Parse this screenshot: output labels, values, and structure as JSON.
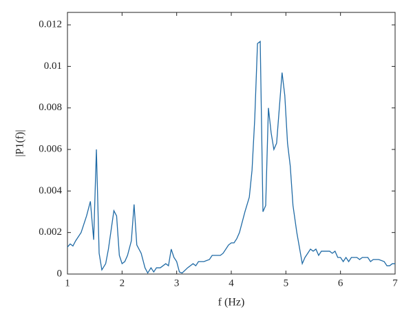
{
  "chart_data": {
    "type": "line",
    "x_label": "f (Hz)",
    "y_label": "|P1(f)|",
    "xlim": [
      1,
      7
    ],
    "xticks": [
      1,
      2,
      3,
      4,
      5,
      6,
      7
    ],
    "ylim": [
      0,
      0.0126
    ],
    "yticks": [
      0,
      0.002,
      0.004,
      0.006,
      0.008,
      0.01,
      0.012
    ],
    "series": [
      {
        "color": "#1f6aa5",
        "x": [
          1.0,
          1.05,
          1.1,
          1.15,
          1.25,
          1.35,
          1.42,
          1.48,
          1.53,
          1.58,
          1.63,
          1.7,
          1.75,
          1.85,
          1.9,
          1.95,
          2.0,
          2.05,
          2.1,
          2.17,
          2.22,
          2.27,
          2.35,
          2.42,
          2.47,
          2.53,
          2.58,
          2.63,
          2.7,
          2.75,
          2.8,
          2.85,
          2.9,
          2.95,
          3.0,
          3.05,
          3.1,
          3.2,
          3.3,
          3.35,
          3.4,
          3.5,
          3.6,
          3.65,
          3.7,
          3.8,
          3.85,
          3.95,
          4.0,
          4.05,
          4.1,
          4.15,
          4.25,
          4.33,
          4.38,
          4.43,
          4.48,
          4.53,
          4.58,
          4.63,
          4.68,
          4.73,
          4.78,
          4.83,
          4.88,
          4.93,
          4.98,
          5.03,
          5.08,
          5.13,
          5.2,
          5.3,
          5.35,
          5.4,
          5.45,
          5.5,
          5.55,
          5.6,
          5.65,
          5.7,
          5.8,
          5.85,
          5.9,
          5.95,
          6.0,
          6.05,
          6.1,
          6.15,
          6.2,
          6.3,
          6.35,
          6.4,
          6.5,
          6.55,
          6.6,
          6.7,
          6.8,
          6.85,
          6.9,
          6.95,
          7.0
        ],
        "values": [
          0.0013,
          0.00145,
          0.00135,
          0.0016,
          0.002,
          0.0028,
          0.0035,
          0.00165,
          0.006,
          0.001,
          0.0002,
          0.0005,
          0.0012,
          0.00305,
          0.0028,
          0.0009,
          0.0005,
          0.0006,
          0.0009,
          0.0016,
          0.00335,
          0.0014,
          0.001,
          0.0003,
          5e-05,
          0.0003,
          0.0001,
          0.0003,
          0.0003,
          0.0004,
          0.0005,
          0.0004,
          0.0012,
          0.0008,
          0.0006,
          0.0001,
          5e-05,
          0.0003,
          0.0005,
          0.0004,
          0.0006,
          0.0006,
          0.0007,
          0.0009,
          0.0009,
          0.0009,
          0.001,
          0.0014,
          0.0015,
          0.0015,
          0.0017,
          0.002,
          0.003,
          0.0037,
          0.005,
          0.0075,
          0.0111,
          0.0112,
          0.003,
          0.0033,
          0.008,
          0.0068,
          0.006,
          0.0063,
          0.008,
          0.0097,
          0.0086,
          0.0063,
          0.0052,
          0.0033,
          0.002,
          0.0005,
          0.0008,
          0.001,
          0.0012,
          0.0011,
          0.0012,
          0.0009,
          0.0011,
          0.0011,
          0.0011,
          0.001,
          0.0011,
          0.0008,
          0.0008,
          0.0006,
          0.0008,
          0.0006,
          0.0008,
          0.0008,
          0.0007,
          0.0008,
          0.0008,
          0.0006,
          0.0007,
          0.0007,
          0.0006,
          0.0004,
          0.0004,
          0.0005,
          0.0005
        ]
      }
    ]
  }
}
